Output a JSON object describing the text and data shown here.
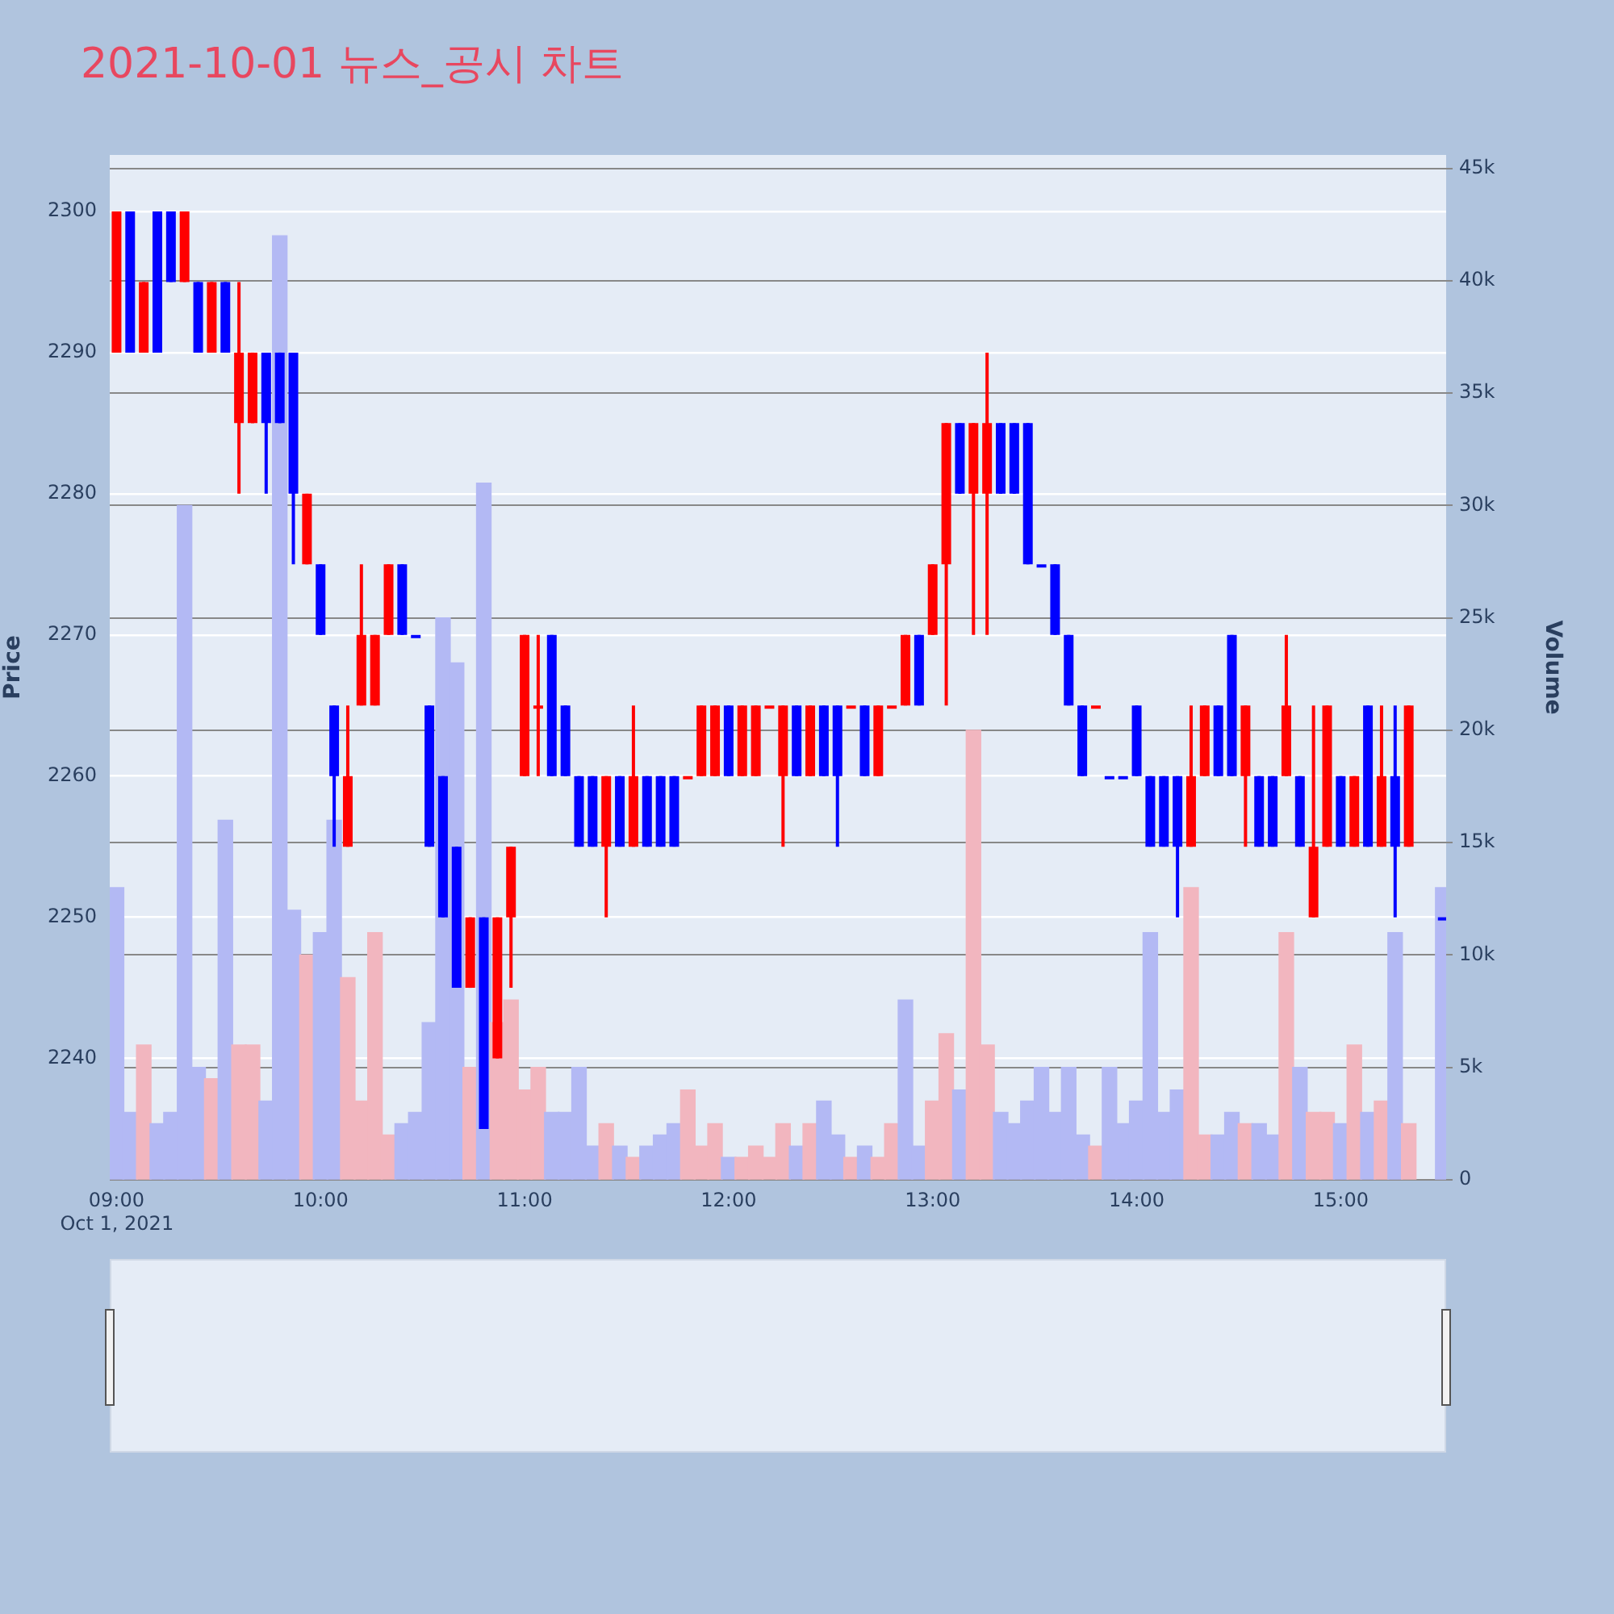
{
  "chart_data": {
    "type": "candlestick",
    "title": "2021-10-01 뉴스_공시 차트",
    "ylabel": "Price",
    "y2label": "Volume",
    "x": [
      "2021-10-01T09:00",
      "2021-10-01T09:04",
      "2021-10-01T09:08",
      "2021-10-01T09:12",
      "2021-10-01T09:16",
      "2021-10-01T09:20",
      "2021-10-01T09:24",
      "2021-10-01T09:28",
      "2021-10-01T09:32",
      "2021-10-01T09:36",
      "2021-10-01T09:40",
      "2021-10-01T09:44",
      "2021-10-01T09:48",
      "2021-10-01T09:52",
      "2021-10-01T09:56",
      "2021-10-01T10:00",
      "2021-10-01T10:04",
      "2021-10-01T10:08",
      "2021-10-01T10:12",
      "2021-10-01T10:16",
      "2021-10-01T10:20",
      "2021-10-01T10:24",
      "2021-10-01T10:28",
      "2021-10-01T10:32",
      "2021-10-01T10:36",
      "2021-10-01T10:40",
      "2021-10-01T10:44",
      "2021-10-01T10:48",
      "2021-10-01T10:52",
      "2021-10-01T10:56",
      "2021-10-01T11:00",
      "2021-10-01T11:04",
      "2021-10-01T11:08",
      "2021-10-01T11:12",
      "2021-10-01T11:16",
      "2021-10-01T11:20",
      "2021-10-01T11:24",
      "2021-10-01T11:28",
      "2021-10-01T11:32",
      "2021-10-01T11:36",
      "2021-10-01T11:40",
      "2021-10-01T11:44",
      "2021-10-01T11:48",
      "2021-10-01T11:52",
      "2021-10-01T11:56",
      "2021-10-01T12:00",
      "2021-10-01T12:04",
      "2021-10-01T12:08",
      "2021-10-01T12:12",
      "2021-10-01T12:16",
      "2021-10-01T12:20",
      "2021-10-01T12:24",
      "2021-10-01T12:28",
      "2021-10-01T12:32",
      "2021-10-01T12:36",
      "2021-10-01T12:40",
      "2021-10-01T12:44",
      "2021-10-01T12:48",
      "2021-10-01T12:52",
      "2021-10-01T12:56",
      "2021-10-01T13:00",
      "2021-10-01T13:04",
      "2021-10-01T13:08",
      "2021-10-01T13:12",
      "2021-10-01T13:16",
      "2021-10-01T13:20",
      "2021-10-01T13:24",
      "2021-10-01T13:28",
      "2021-10-01T13:32",
      "2021-10-01T13:36",
      "2021-10-01T13:40",
      "2021-10-01T13:44",
      "2021-10-01T13:48",
      "2021-10-01T13:52",
      "2021-10-01T13:56",
      "2021-10-01T14:00",
      "2021-10-01T14:04",
      "2021-10-01T14:08",
      "2021-10-01T14:12",
      "2021-10-01T14:16",
      "2021-10-01T14:20",
      "2021-10-01T14:24",
      "2021-10-01T14:28",
      "2021-10-01T14:32",
      "2021-10-01T14:36",
      "2021-10-01T14:40",
      "2021-10-01T14:44",
      "2021-10-01T14:48",
      "2021-10-01T14:52",
      "2021-10-01T14:56",
      "2021-10-01T15:00",
      "2021-10-01T15:04",
      "2021-10-01T15:08",
      "2021-10-01T15:12",
      "2021-10-01T15:16",
      "2021-10-01T15:20",
      "2021-10-01T15:30"
    ],
    "series": [
      {
        "type": "candlestick",
        "ohlc": [
          [
            2290,
            2300,
            2290,
            2300
          ],
          [
            2300,
            2300,
            2290,
            2290
          ],
          [
            2290,
            2295,
            2290,
            2295
          ],
          [
            2300,
            2300,
            2290,
            2290
          ],
          [
            2300,
            2300,
            2295,
            2295
          ],
          [
            2295,
            2300,
            2295,
            2300
          ],
          [
            2295,
            2295,
            2290,
            2290
          ],
          [
            2290,
            2295,
            2290,
            2295
          ],
          [
            2295,
            2295,
            2290,
            2290
          ],
          [
            2285,
            2295,
            2280,
            2290
          ],
          [
            2285,
            2290,
            2285,
            2290
          ],
          [
            2290,
            2290,
            2280,
            2285
          ],
          [
            2290,
            2290,
            2285,
            2285
          ],
          [
            2290,
            2290,
            2275,
            2280
          ],
          [
            2275,
            2280,
            2275,
            2280
          ],
          [
            2275,
            2275,
            2270,
            2270
          ],
          [
            2265,
            2265,
            2255,
            2260
          ],
          [
            2255,
            2265,
            2255,
            2260
          ],
          [
            2265,
            2275,
            2265,
            2270
          ],
          [
            2265,
            2270,
            2265,
            2270
          ],
          [
            2270,
            2275,
            2270,
            2275
          ],
          [
            2275,
            2275,
            2270,
            2270
          ],
          [
            2270,
            2270,
            2270,
            2270
          ],
          [
            2265,
            2265,
            2255,
            2255
          ],
          [
            2260,
            2260,
            2250,
            2250
          ],
          [
            2255,
            2255,
            2245,
            2245
          ],
          [
            2245,
            2250,
            2245,
            2250
          ],
          [
            2250,
            2250,
            2235,
            2235
          ],
          [
            2240,
            2250,
            2240,
            2250
          ],
          [
            2250,
            2255,
            2245,
            2255
          ],
          [
            2260,
            2270,
            2260,
            2270
          ],
          [
            2265,
            2270,
            2260,
            2265
          ],
          [
            2270,
            2270,
            2260,
            2260
          ],
          [
            2265,
            2265,
            2260,
            2260
          ],
          [
            2260,
            2260,
            2255,
            2255
          ],
          [
            2260,
            2260,
            2255,
            2255
          ],
          [
            2255,
            2260,
            2250,
            2260
          ],
          [
            2260,
            2260,
            2255,
            2255
          ],
          [
            2255,
            2265,
            2255,
            2260
          ],
          [
            2260,
            2260,
            2255,
            2255
          ],
          [
            2260,
            2260,
            2255,
            2255
          ],
          [
            2260,
            2260,
            2255,
            2255
          ],
          [
            2260,
            2260,
            2260,
            2260
          ],
          [
            2260,
            2265,
            2260,
            2265
          ],
          [
            2260,
            2265,
            2260,
            2265
          ],
          [
            2265,
            2265,
            2260,
            2260
          ],
          [
            2260,
            2265,
            2260,
            2265
          ],
          [
            2260,
            2265,
            2260,
            2265
          ],
          [
            2265,
            2265,
            2265,
            2265
          ],
          [
            2260,
            2265,
            2255,
            2265
          ],
          [
            2265,
            2265,
            2260,
            2260
          ],
          [
            2260,
            2265,
            2260,
            2265
          ],
          [
            2265,
            2265,
            2260,
            2260
          ],
          [
            2265,
            2265,
            2255,
            2260
          ],
          [
            2265,
            2265,
            2265,
            2265
          ],
          [
            2265,
            2265,
            2260,
            2260
          ],
          [
            2260,
            2265,
            2260,
            2265
          ],
          [
            2265,
            2265,
            2265,
            2265
          ],
          [
            2265,
            2270,
            2265,
            2270
          ],
          [
            2270,
            2270,
            2265,
            2265
          ],
          [
            2270,
            2275,
            2270,
            2275
          ],
          [
            2275,
            2285,
            2265,
            2285
          ],
          [
            2285,
            2285,
            2280,
            2280
          ],
          [
            2280,
            2285,
            2270,
            2285
          ],
          [
            2280,
            2290,
            2270,
            2285
          ],
          [
            2285,
            2285,
            2280,
            2280
          ],
          [
            2285,
            2285,
            2280,
            2280
          ],
          [
            2285,
            2285,
            2275,
            2275
          ],
          [
            2275,
            2275,
            2275,
            2275
          ],
          [
            2275,
            2275,
            2270,
            2270
          ],
          [
            2270,
            2270,
            2265,
            2265
          ],
          [
            2265,
            2265,
            2260,
            2260
          ],
          [
            2265,
            2265,
            2265,
            2265
          ],
          [
            2260,
            2260,
            2260,
            2260
          ],
          [
            2260,
            2260,
            2260,
            2260
          ],
          [
            2265,
            2265,
            2260,
            2260
          ],
          [
            2260,
            2260,
            2255,
            2255
          ],
          [
            2260,
            2260,
            2255,
            2255
          ],
          [
            2260,
            2260,
            2250,
            2255
          ],
          [
            2255,
            2265,
            2255,
            2260
          ],
          [
            2260,
            2265,
            2260,
            2265
          ],
          [
            2265,
            2265,
            2260,
            2260
          ],
          [
            2270,
            2270,
            2260,
            2260
          ],
          [
            2260,
            2265,
            2255,
            2265
          ],
          [
            2260,
            2260,
            2255,
            2255
          ],
          [
            2260,
            2260,
            2255,
            2255
          ],
          [
            2260,
            2270,
            2260,
            2265
          ],
          [
            2260,
            2260,
            2255,
            2255
          ],
          [
            2250,
            2265,
            2250,
            2255
          ],
          [
            2255,
            2265,
            2255,
            2265
          ],
          [
            2260,
            2260,
            2255,
            2255
          ],
          [
            2255,
            2260,
            2255,
            2260
          ],
          [
            2265,
            2265,
            2255,
            2255
          ],
          [
            2255,
            2265,
            2255,
            2260
          ],
          [
            2260,
            2265,
            2250,
            2255
          ],
          [
            2255,
            2265,
            2255,
            2265
          ],
          [
            2250,
            2250,
            2250,
            2250
          ]
        ],
        "colors": [
          "#ff0000",
          "#0000ff",
          "#ff0000",
          "#0000ff",
          "#0000ff",
          "#ff0000",
          "#0000ff",
          "#ff0000",
          "#0000ff",
          "#ff0000",
          "#ff0000",
          "#0000ff",
          "#0000ff",
          "#0000ff",
          "#ff0000",
          "#0000ff",
          "#0000ff",
          "#ff0000",
          "#ff0000",
          "#ff0000",
          "#ff0000",
          "#0000ff",
          "#0000ff",
          "#0000ff",
          "#0000ff",
          "#0000ff",
          "#ff0000",
          "#0000ff",
          "#ff0000",
          "#ff0000",
          "#ff0000",
          "#ff0000",
          "#0000ff",
          "#0000ff",
          "#0000ff",
          "#0000ff",
          "#ff0000",
          "#0000ff",
          "#ff0000",
          "#0000ff",
          "#0000ff",
          "#0000ff",
          "#ff0000",
          "#ff0000",
          "#ff0000",
          "#0000ff",
          "#ff0000",
          "#ff0000",
          "#ff0000",
          "#ff0000",
          "#0000ff",
          "#ff0000",
          "#0000ff",
          "#0000ff",
          "#ff0000",
          "#0000ff",
          "#ff0000",
          "#ff0000",
          "#ff0000",
          "#0000ff",
          "#ff0000",
          "#ff0000",
          "#0000ff",
          "#ff0000",
          "#ff0000",
          "#0000ff",
          "#0000ff",
          "#0000ff",
          "#0000ff",
          "#0000ff",
          "#0000ff",
          "#0000ff",
          "#ff0000",
          "#0000ff",
          "#0000ff",
          "#0000ff",
          "#0000ff",
          "#0000ff",
          "#0000ff",
          "#ff0000",
          "#ff0000",
          "#0000ff",
          "#0000ff",
          "#ff0000",
          "#0000ff",
          "#0000ff",
          "#ff0000",
          "#0000ff",
          "#ff0000",
          "#ff0000",
          "#0000ff",
          "#ff0000",
          "#0000ff",
          "#ff0000",
          "#0000ff",
          "#ff0000",
          "#0000ff"
        ]
      },
      {
        "type": "bar",
        "axis": "y2",
        "values": [
          13000,
          3000,
          6000,
          2500,
          3000,
          30000,
          5000,
          4500,
          16000,
          6000,
          6000,
          3500,
          42000,
          12000,
          10000,
          11000,
          16000,
          9000,
          3500,
          11000,
          2000,
          2500,
          3000,
          7000,
          25000,
          23000,
          5000,
          31000,
          7000,
          8000,
          4000,
          5000,
          3000,
          3000,
          5000,
          1500,
          2500,
          1500,
          1000,
          1500,
          2000,
          2500,
          4000,
          1500,
          2500,
          1000,
          1000,
          1500,
          1000,
          2500,
          1500,
          2500,
          3500,
          2000,
          1000,
          1500,
          1000,
          2500,
          8000,
          1500,
          3500,
          6500,
          4000,
          20000,
          6000,
          3000,
          2500,
          3500,
          5000,
          3000,
          5000,
          2000,
          1500,
          5000,
          2500,
          3500,
          11000,
          3000,
          4000,
          13000,
          2000,
          2000,
          3000,
          2500,
          2500,
          2000,
          11000,
          5000,
          3000,
          3000,
          2500,
          6000,
          3000,
          3500,
          11000,
          2500,
          13000
        ],
        "colors": [
          "#b3b9f4",
          "#b3b9f4",
          "#f2b6bf",
          "#b3b9f4",
          "#b3b9f4",
          "#b3b9f4",
          "#b3b9f4",
          "#f2b6bf",
          "#b3b9f4",
          "#f2b6bf",
          "#f2b6bf",
          "#b3b9f4",
          "#b3b9f4",
          "#b3b9f4",
          "#f2b6bf",
          "#b3b9f4",
          "#b3b9f4",
          "#f2b6bf",
          "#f2b6bf",
          "#f2b6bf",
          "#f2b6bf",
          "#b3b9f4",
          "#b3b9f4",
          "#b3b9f4",
          "#b3b9f4",
          "#b3b9f4",
          "#f2b6bf",
          "#b3b9f4",
          "#f2b6bf",
          "#f2b6bf",
          "#f2b6bf",
          "#f2b6bf",
          "#b3b9f4",
          "#b3b9f4",
          "#b3b9f4",
          "#b3b9f4",
          "#f2b6bf",
          "#b3b9f4",
          "#f2b6bf",
          "#b3b9f4",
          "#b3b9f4",
          "#b3b9f4",
          "#f2b6bf",
          "#f2b6bf",
          "#f2b6bf",
          "#b3b9f4",
          "#f2b6bf",
          "#f2b6bf",
          "#f2b6bf",
          "#f2b6bf",
          "#b3b9f4",
          "#f2b6bf",
          "#b3b9f4",
          "#b3b9f4",
          "#f2b6bf",
          "#b3b9f4",
          "#f2b6bf",
          "#f2b6bf",
          "#b3b9f4",
          "#b3b9f4",
          "#f2b6bf",
          "#f2b6bf",
          "#b3b9f4",
          "#f2b6bf",
          "#f2b6bf",
          "#b3b9f4",
          "#b3b9f4",
          "#b3b9f4",
          "#b3b9f4",
          "#b3b9f4",
          "#b3b9f4",
          "#b3b9f4",
          "#f2b6bf",
          "#b3b9f4",
          "#b3b9f4",
          "#b3b9f4",
          "#b3b9f4",
          "#b3b9f4",
          "#b3b9f4",
          "#f2b6bf",
          "#f2b6bf",
          "#b3b9f4",
          "#b3b9f4",
          "#f2b6bf",
          "#b3b9f4",
          "#b3b9f4",
          "#f2b6bf",
          "#b3b9f4",
          "#f2b6bf",
          "#f2b6bf",
          "#b3b9f4",
          "#f2b6bf",
          "#b3b9f4",
          "#f2b6bf",
          "#b3b9f4",
          "#f2b6bf",
          "#b3b9f4"
        ]
      }
    ],
    "xlim": [
      "2021-10-01T08:58",
      "2021-10-01T15:31"
    ],
    "xticks": [
      {
        "value": "2021-10-01T09:00",
        "label": "09:00"
      },
      {
        "value": "2021-10-01T10:00",
        "label": "10:00"
      },
      {
        "value": "2021-10-01T11:00",
        "label": "11:00"
      },
      {
        "value": "2021-10-01T12:00",
        "label": "12:00"
      },
      {
        "value": "2021-10-01T13:00",
        "label": "13:00"
      },
      {
        "value": "2021-10-01T14:00",
        "label": "14:00"
      },
      {
        "value": "2021-10-01T15:00",
        "label": "15:00"
      }
    ],
    "annotations": [
      "Oct 1, 2021"
    ],
    "ylim": [
      2231.4,
      2304
    ],
    "yticks": [
      2240,
      2250,
      2260,
      2270,
      2280,
      2290,
      2300
    ],
    "y2lim": [
      0,
      45600
    ],
    "y2ticks": [
      0,
      {
        "value": 5000,
        "label": "5k"
      },
      {
        "value": 10000,
        "label": "10k"
      },
      {
        "value": 15000,
        "label": "15k"
      },
      {
        "value": 20000,
        "label": "20k"
      },
      {
        "value": 25000,
        "label": "25k"
      },
      {
        "value": 30000,
        "label": "30k"
      },
      {
        "value": 35000,
        "label": "35k"
      },
      {
        "value": 40000,
        "label": "40k"
      },
      {
        "value": 45000,
        "label": "45k"
      }
    ],
    "grid": "y",
    "legend": false
  }
}
